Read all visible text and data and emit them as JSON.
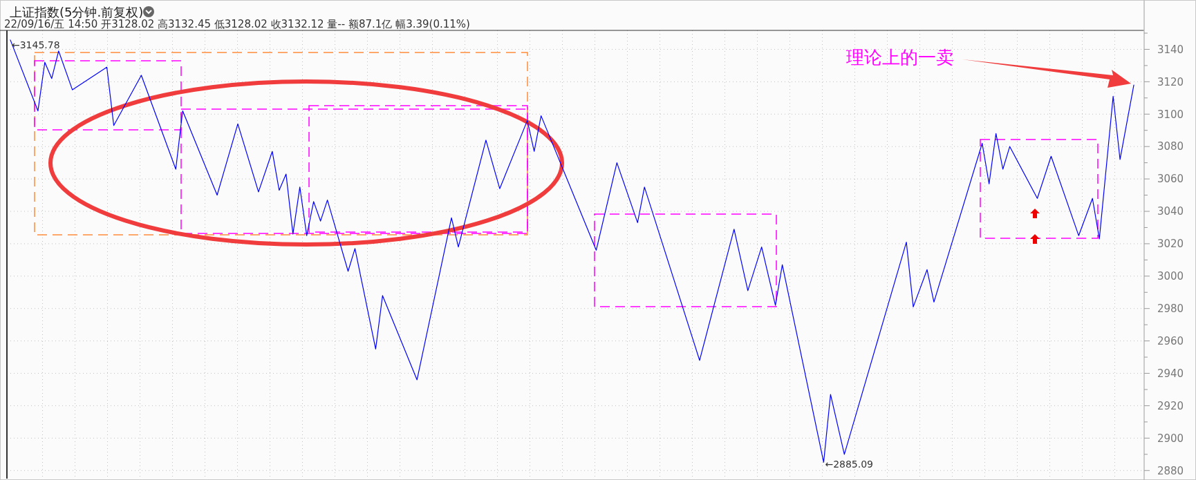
{
  "chart_data": {
    "type": "line",
    "title": "上证指数(5分钟.前复权)",
    "subtitle": "22/09/16/五 14:50 开3128.02 高3132.45 低3128.02 收3132.12 量-- 额87.1亿 幅3.39(0.11%)",
    "categories": [
      null,
      null,
      null,
      null,
      null,
      null,
      null,
      null,
      null,
      null,
      null,
      null,
      null,
      null,
      null,
      null,
      null,
      null,
      null,
      null,
      null,
      null,
      null,
      null,
      null,
      null,
      null,
      null,
      null,
      null,
      null,
      null,
      null,
      null,
      null,
      null,
      null,
      null,
      null,
      null,
      null,
      null,
      null,
      null,
      null,
      null,
      null,
      null,
      null,
      null,
      null,
      null,
      null,
      null,
      null,
      null,
      null,
      null,
      null,
      null,
      null,
      null,
      null,
      null,
      null,
      null,
      null,
      null,
      null,
      null,
      null,
      null,
      null,
      null,
      null,
      null,
      null,
      null,
      null,
      null,
      null,
      null,
      null,
      null,
      null,
      null,
      null,
      null,
      null,
      null,
      null,
      null,
      null,
      null,
      null,
      null,
      null,
      null,
      null,
      null,
      null,
      null,
      null,
      null,
      null,
      null,
      null,
      null,
      null,
      null,
      null,
      null,
      null,
      null,
      null,
      null,
      null,
      null,
      null,
      null,
      null,
      null,
      null,
      null,
      null,
      null,
      null,
      null,
      null,
      null,
      null,
      null,
      null,
      null,
      null,
      null,
      null,
      null,
      null,
      null,
      null,
      null,
      null,
      null,
      null,
      null,
      null,
      null,
      null,
      null,
      null,
      null,
      null,
      null,
      null,
      null,
      null,
      null,
      null,
      null,
      null,
      null,
      null,
      null,
      null
    ],
    "series": [
      {
        "color": "#0000ff",
        "values": [
          3145.78,
          null,
          null,
          null,
          3102,
          3132,
          3122,
          3139,
          null,
          3115,
          null,
          null,
          null,
          null,
          3129,
          3093,
          null,
          null,
          null,
          3124,
          null,
          null,
          null,
          null,
          3066,
          3102,
          null,
          null,
          null,
          null,
          3050,
          null,
          null,
          3094,
          null,
          null,
          3052,
          null,
          3077,
          3053,
          3063,
          3026,
          3055,
          3025,
          3046,
          3034,
          3047,
          null,
          null,
          3003,
          3017,
          null,
          null,
          2955,
          2988,
          null,
          null,
          null,
          null,
          2936,
          null,
          null,
          null,
          null,
          3036,
          3018,
          null,
          null,
          null,
          3084,
          null,
          3054,
          null,
          null,
          null,
          3096,
          3077,
          3099,
          null,
          null,
          null,
          null,
          null,
          null,
          null,
          3016,
          null,
          null,
          3070,
          null,
          null,
          3033,
          3055,
          null,
          null,
          null,
          null,
          null,
          null,
          null,
          2948,
          null,
          null,
          null,
          null,
          3029,
          null,
          2991,
          null,
          3018,
          null,
          2982,
          3007,
          null,
          null,
          null,
          null,
          null,
          2885.09,
          2927,
          null,
          2890,
          null,
          null,
          null,
          null,
          null,
          null,
          null,
          null,
          3021,
          2981,
          null,
          3004,
          2984,
          null,
          null,
          null,
          null,
          null,
          null,
          3082,
          3057,
          3088,
          3066,
          3080,
          null,
          null,
          null,
          3048,
          null,
          3074,
          null,
          null,
          null,
          3025,
          null,
          3048,
          3023,
          null,
          3111,
          3072,
          null,
          3118,
          null
        ]
      }
    ],
    "ylim": [
      2875,
      3151.7
    ],
    "yticks": [
      2880,
      {
        "value": 2890,
        "label": null
      },
      2900,
      {
        "value": 2910,
        "label": null
      },
      2920,
      {
        "value": 2930,
        "label": null
      },
      2940,
      {
        "value": 2950,
        "label": null
      },
      2960,
      {
        "value": 2970,
        "label": null
      },
      2980,
      {
        "value": 2990,
        "label": null
      },
      3000,
      {
        "value": 3010,
        "label": null
      },
      3020,
      {
        "value": 3030,
        "label": null
      },
      3040,
      {
        "value": 3050,
        "label": null
      },
      3060,
      {
        "value": 3070,
        "label": null
      },
      3080,
      {
        "value": 3090,
        "label": null
      },
      3100,
      {
        "value": 3110,
        "label": null
      },
      3120,
      {
        "value": 3130,
        "label": null
      },
      3140,
      {
        "value": 3150,
        "label": null
      }
    ],
    "grid": true,
    "tick_labels": "y",
    "annotations": [
      "←3145.78",
      "←2885.09",
      "理论上的一卖"
    ]
  }
}
